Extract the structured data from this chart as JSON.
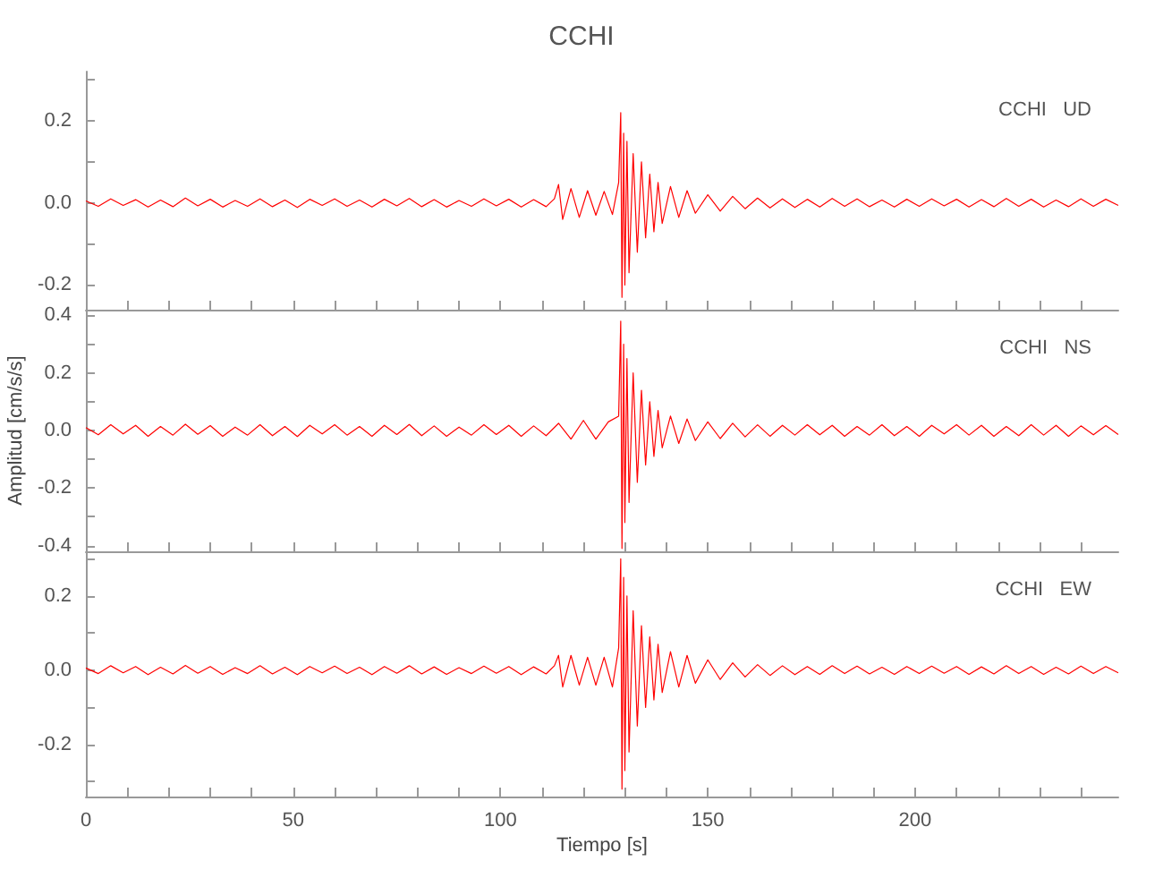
{
  "chart_data": [
    {
      "type": "line",
      "title": "CCHI",
      "annotations": [
        "CCHI   UD"
      ],
      "grid": false,
      "marker": "none",
      "tick_labels": "y",
      "x": [
        0,
        3,
        6,
        9,
        12,
        15,
        18,
        21,
        24,
        27,
        30,
        33,
        36,
        39,
        42,
        45,
        48,
        51,
        54,
        57,
        60,
        63,
        66,
        69,
        72,
        75,
        78,
        81,
        84,
        87,
        90,
        93,
        96,
        99,
        102,
        105,
        108,
        111,
        113,
        114,
        115,
        117,
        119,
        121,
        123,
        125,
        127,
        128.5,
        129,
        129.3,
        129.7,
        130,
        130.5,
        131,
        132,
        133,
        134,
        135,
        136,
        137,
        138,
        139,
        141,
        143,
        145,
        147,
        150,
        153,
        156,
        159,
        162,
        165,
        168,
        171,
        174,
        177,
        180,
        183,
        186,
        189,
        192,
        195,
        198,
        201,
        204,
        207,
        210,
        213,
        216,
        219,
        222,
        225,
        228,
        231,
        234,
        237,
        240,
        243,
        246,
        249
      ],
      "series": [
        {
          "color": "#ff0000",
          "values": [
            0.005,
            -0.008,
            0.01,
            -0.006,
            0.008,
            -0.01,
            0.007,
            -0.009,
            0.012,
            -0.007,
            0.009,
            -0.01,
            0.006,
            -0.008,
            0.01,
            -0.009,
            0.007,
            -0.011,
            0.009,
            -0.006,
            0.01,
            -0.008,
            0.007,
            -0.01,
            0.009,
            -0.007,
            0.011,
            -0.009,
            0.008,
            -0.01,
            0.006,
            -0.008,
            0.01,
            -0.007,
            0.009,
            -0.01,
            0.008,
            -0.009,
            0.01,
            0.045,
            -0.04,
            0.035,
            -0.035,
            0.03,
            -0.03,
            0.028,
            -0.028,
            0.05,
            0.22,
            -0.23,
            0.17,
            -0.2,
            0.15,
            -0.17,
            0.12,
            -0.12,
            0.1,
            -0.085,
            0.07,
            -0.07,
            0.05,
            -0.05,
            0.04,
            -0.035,
            0.03,
            -0.025,
            0.02,
            -0.02,
            0.016,
            -0.014,
            0.012,
            -0.012,
            0.01,
            -0.011,
            0.009,
            -0.01,
            0.011,
            -0.008,
            0.01,
            -0.009,
            0.007,
            -0.01,
            0.009,
            -0.008,
            0.01,
            -0.007,
            0.009,
            -0.01,
            0.008,
            -0.009,
            0.011,
            -0.008,
            0.009,
            -0.01,
            0.007,
            -0.009,
            0.01,
            -0.008,
            0.009,
            -0.006
          ]
        }
      ],
      "xlim": [
        0,
        249
      ],
      "xticks": [
        0,
        {
          "value": 10,
          "label": null
        },
        {
          "value": 20,
          "label": null
        },
        {
          "value": 30,
          "label": null
        },
        {
          "value": 40,
          "label": null
        },
        50,
        {
          "value": 60,
          "label": null
        },
        {
          "value": 70,
          "label": null
        },
        {
          "value": 80,
          "label": null
        },
        {
          "value": 90,
          "label": null
        },
        100,
        {
          "value": 110,
          "label": null
        },
        {
          "value": 120,
          "label": null
        },
        {
          "value": 130,
          "label": null
        },
        {
          "value": 140,
          "label": null
        },
        150,
        {
          "value": 160,
          "label": null
        },
        {
          "value": 170,
          "label": null
        },
        {
          "value": 180,
          "label": null
        },
        {
          "value": 190,
          "label": null
        },
        200,
        {
          "value": 210,
          "label": null
        },
        {
          "value": 220,
          "label": null
        },
        {
          "value": 230,
          "label": null
        },
        {
          "value": 240,
          "label": null
        }
      ],
      "ylim": [
        -0.26,
        0.32
      ],
      "yticks": [
        {
          "value": -0.2,
          "label": "-0.2"
        },
        {
          "value": -0.1,
          "label": null
        },
        {
          "value": 0,
          "label": "0.0"
        },
        {
          "value": 0.1,
          "label": null
        },
        {
          "value": 0.2,
          "label": "0.2"
        },
        {
          "value": 0.3,
          "label": null
        }
      ]
    },
    {
      "type": "line",
      "ylabel": "Amplitud [cm/s/s]",
      "annotations": [
        "CCHI   NS"
      ],
      "grid": false,
      "marker": "none",
      "tick_labels": "y",
      "x": [
        0,
        3,
        6,
        9,
        12,
        15,
        18,
        21,
        24,
        27,
        30,
        33,
        36,
        39,
        42,
        45,
        48,
        51,
        54,
        57,
        60,
        63,
        66,
        69,
        72,
        75,
        78,
        81,
        84,
        87,
        90,
        93,
        96,
        99,
        102,
        105,
        108,
        111,
        114,
        117,
        120,
        123,
        126,
        128.5,
        129,
        129.3,
        129.7,
        130,
        130.5,
        131,
        132,
        133,
        134,
        135,
        136,
        137,
        138,
        139,
        141,
        143,
        145,
        147,
        150,
        153,
        156,
        159,
        162,
        165,
        168,
        171,
        174,
        177,
        180,
        183,
        186,
        189,
        192,
        195,
        198,
        201,
        204,
        207,
        210,
        213,
        216,
        219,
        222,
        225,
        228,
        231,
        234,
        237,
        240,
        243,
        246,
        249
      ],
      "series": [
        {
          "color": "#ff0000",
          "values": [
            0.01,
            -0.015,
            0.02,
            -0.012,
            0.018,
            -0.02,
            0.014,
            -0.016,
            0.022,
            -0.013,
            0.017,
            -0.02,
            0.012,
            -0.016,
            0.02,
            -0.018,
            0.014,
            -0.021,
            0.018,
            -0.012,
            0.02,
            -0.016,
            0.014,
            -0.02,
            0.018,
            -0.014,
            0.021,
            -0.018,
            0.016,
            -0.02,
            0.012,
            -0.016,
            0.02,
            -0.014,
            0.018,
            -0.02,
            0.016,
            -0.018,
            0.025,
            -0.03,
            0.035,
            -0.03,
            0.03,
            0.05,
            0.38,
            -0.41,
            0.3,
            -0.32,
            0.25,
            -0.25,
            0.2,
            -0.18,
            0.14,
            -0.12,
            0.1,
            -0.09,
            0.07,
            -0.06,
            0.05,
            -0.045,
            0.04,
            -0.035,
            0.03,
            -0.028,
            0.025,
            -0.022,
            0.02,
            -0.02,
            0.018,
            -0.016,
            0.02,
            -0.015,
            0.018,
            -0.02,
            0.014,
            -0.016,
            0.02,
            -0.018,
            0.014,
            -0.02,
            0.018,
            -0.012,
            0.02,
            -0.016,
            0.018,
            -0.02,
            0.014,
            -0.018,
            0.02,
            -0.016,
            0.018,
            -0.02,
            0.016,
            -0.015,
            0.017,
            -0.014
          ]
        }
      ],
      "xlim": [
        0,
        249
      ],
      "xticks": [
        0,
        {
          "value": 10,
          "label": null
        },
        {
          "value": 20,
          "label": null
        },
        {
          "value": 30,
          "label": null
        },
        {
          "value": 40,
          "label": null
        },
        50,
        {
          "value": 60,
          "label": null
        },
        {
          "value": 70,
          "label": null
        },
        {
          "value": 80,
          "label": null
        },
        {
          "value": 90,
          "label": null
        },
        100,
        {
          "value": 110,
          "label": null
        },
        {
          "value": 120,
          "label": null
        },
        {
          "value": 130,
          "label": null
        },
        {
          "value": 140,
          "label": null
        },
        150,
        {
          "value": 160,
          "label": null
        },
        {
          "value": 170,
          "label": null
        },
        {
          "value": 180,
          "label": null
        },
        {
          "value": 190,
          "label": null
        },
        200,
        {
          "value": 210,
          "label": null
        },
        {
          "value": 220,
          "label": null
        },
        {
          "value": 230,
          "label": null
        },
        {
          "value": 240,
          "label": null
        }
      ],
      "ylim": [
        -0.42,
        0.42
      ],
      "yticks": [
        {
          "value": -0.4,
          "label": "-0.4"
        },
        {
          "value": -0.3,
          "label": null
        },
        {
          "value": -0.2,
          "label": "-0.2"
        },
        {
          "value": -0.1,
          "label": null
        },
        {
          "value": 0,
          "label": "0.0"
        },
        {
          "value": 0.1,
          "label": null
        },
        {
          "value": 0.2,
          "label": "0.2"
        },
        {
          "value": 0.3,
          "label": null
        },
        {
          "value": 0.4,
          "label": "0.4"
        }
      ]
    },
    {
      "type": "line",
      "xlabel": "Tiempo [s]",
      "annotations": [
        "CCHI   EW"
      ],
      "grid": false,
      "marker": "none",
      "x": [
        0,
        3,
        6,
        9,
        12,
        15,
        18,
        21,
        24,
        27,
        30,
        33,
        36,
        39,
        42,
        45,
        48,
        51,
        54,
        57,
        60,
        63,
        66,
        69,
        72,
        75,
        78,
        81,
        84,
        87,
        90,
        93,
        96,
        99,
        102,
        105,
        108,
        111,
        113,
        114,
        115,
        117,
        119,
        121,
        123,
        125,
        127,
        128.5,
        129,
        129.3,
        129.7,
        130,
        130.5,
        131,
        132,
        133,
        134,
        135,
        136,
        137,
        138,
        139,
        141,
        143,
        145,
        147,
        150,
        153,
        156,
        159,
        162,
        165,
        168,
        171,
        174,
        177,
        180,
        183,
        186,
        189,
        192,
        195,
        198,
        201,
        204,
        207,
        210,
        213,
        216,
        219,
        222,
        225,
        228,
        231,
        234,
        237,
        240,
        243,
        246,
        249
      ],
      "series": [
        {
          "color": "#ff0000",
          "values": [
            0.006,
            -0.009,
            0.012,
            -0.007,
            0.01,
            -0.012,
            0.008,
            -0.01,
            0.013,
            -0.008,
            0.01,
            -0.011,
            0.007,
            -0.009,
            0.012,
            -0.01,
            0.008,
            -0.012,
            0.01,
            -0.007,
            0.011,
            -0.009,
            0.008,
            -0.012,
            0.01,
            -0.008,
            0.012,
            -0.01,
            0.009,
            -0.011,
            0.007,
            -0.009,
            0.011,
            -0.008,
            0.01,
            -0.012,
            0.009,
            -0.01,
            0.012,
            0.04,
            -0.045,
            0.04,
            -0.04,
            0.035,
            -0.04,
            0.035,
            -0.045,
            0.06,
            0.3,
            -0.32,
            0.25,
            -0.27,
            0.2,
            -0.22,
            0.16,
            -0.15,
            0.12,
            -0.1,
            0.09,
            -0.08,
            0.07,
            -0.06,
            0.05,
            -0.045,
            0.04,
            -0.035,
            0.028,
            -0.025,
            0.02,
            -0.018,
            0.015,
            -0.014,
            0.012,
            -0.012,
            0.01,
            -0.011,
            0.012,
            -0.009,
            0.011,
            -0.01,
            0.008,
            -0.011,
            0.01,
            -0.009,
            0.011,
            -0.008,
            0.01,
            -0.011,
            0.009,
            -0.01,
            0.012,
            -0.009,
            0.01,
            -0.011,
            0.008,
            -0.01,
            0.011,
            -0.009,
            0.01,
            -0.007
          ]
        }
      ],
      "xlim": [
        0,
        249
      ],
      "xticks": [
        0,
        {
          "value": 10,
          "label": null
        },
        {
          "value": 20,
          "label": null
        },
        {
          "value": 30,
          "label": null
        },
        {
          "value": 40,
          "label": null
        },
        50,
        {
          "value": 60,
          "label": null
        },
        {
          "value": 70,
          "label": null
        },
        {
          "value": 80,
          "label": null
        },
        {
          "value": 90,
          "label": null
        },
        100,
        {
          "value": 110,
          "label": null
        },
        {
          "value": 120,
          "label": null
        },
        {
          "value": 130,
          "label": null
        },
        {
          "value": 140,
          "label": null
        },
        150,
        {
          "value": 160,
          "label": null
        },
        {
          "value": 170,
          "label": null
        },
        {
          "value": 180,
          "label": null
        },
        {
          "value": 190,
          "label": null
        },
        200,
        {
          "value": 210,
          "label": null
        },
        {
          "value": 220,
          "label": null
        },
        {
          "value": 230,
          "label": null
        },
        {
          "value": 240,
          "label": null
        }
      ],
      "ylim": [
        -0.34,
        0.32
      ],
      "yticks": [
        {
          "value": -0.3,
          "label": null
        },
        {
          "value": -0.2,
          "label": "-0.2"
        },
        {
          "value": -0.1,
          "label": null
        },
        {
          "value": 0,
          "label": "0.0"
        },
        {
          "value": 0.1,
          "label": null
        },
        {
          "value": 0.2,
          "label": "0.2"
        },
        {
          "value": 0.3,
          "label": null
        }
      ]
    }
  ]
}
